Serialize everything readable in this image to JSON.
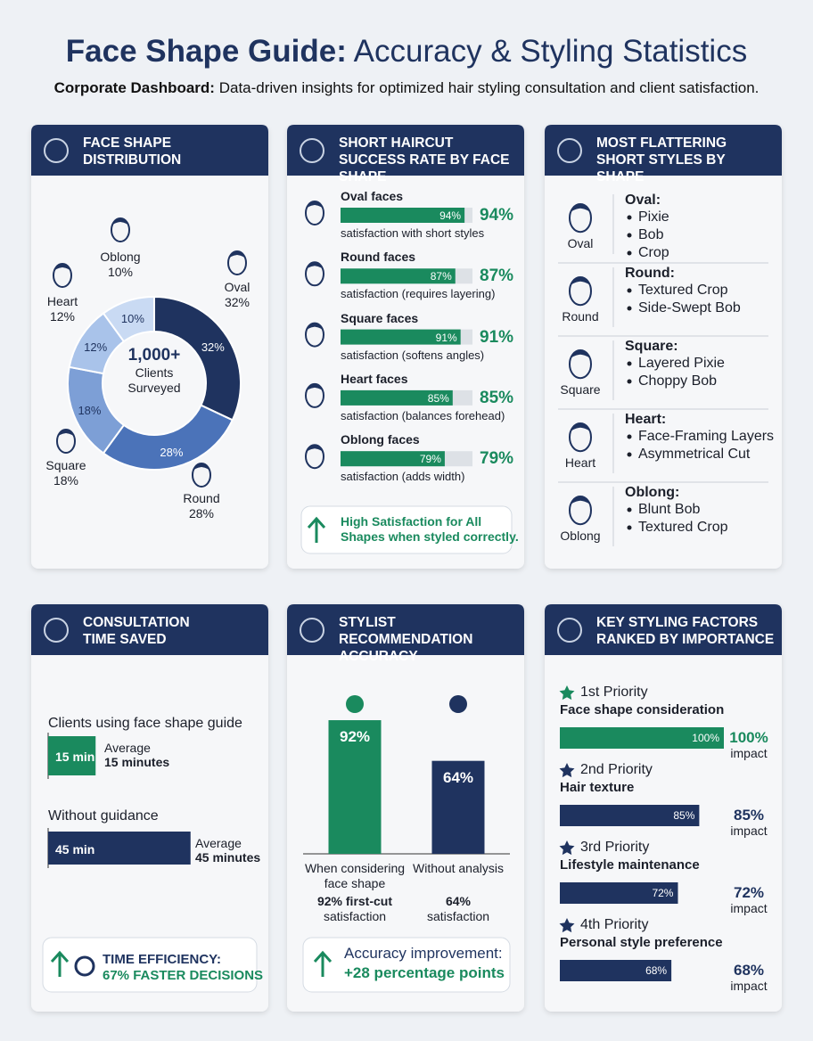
{
  "header": {
    "title_bold": "Face Shape Guide:",
    "title_rest": "Accuracy & Styling Statistics",
    "subtitle_bold": "Corporate Dashboard:",
    "subtitle_rest": "Data-driven insights for optimized hair styling consultation and client satisfaction."
  },
  "chart_data": [
    {
      "type": "donut",
      "title": "FACE SHAPE DISTRIBUTION",
      "center_value": "1,000+",
      "center_label": "Clients Surveyed",
      "categories": [
        "Oval",
        "Round",
        "Square",
        "Heart",
        "Oblong"
      ],
      "values": [
        32,
        28,
        18,
        12,
        10
      ],
      "value_labels": [
        "32%",
        "28%",
        "18%",
        "12%",
        "10%"
      ],
      "colors": [
        "#1f335f",
        "#4b73b9",
        "#7d9fd6",
        "#a9c3ea",
        "#c9daf3"
      ]
    },
    {
      "type": "progress",
      "title": "SHORT HAIRCUT SUCCESS RATE BY FACE SHAPE",
      "categories": [
        "Oval faces",
        "Round faces",
        "Square faces",
        "Heart faces",
        "Oblong faces"
      ],
      "values": [
        94,
        87,
        91,
        85,
        79
      ],
      "value_labels": [
        "94%",
        "87%",
        "91%",
        "85%",
        "79%"
      ],
      "descriptions": [
        "satisfaction with short styles",
        "satisfaction (requires layering)",
        "satisfaction (softens angles)",
        "satisfaction (balances forehead)",
        "satisfaction (adds width)"
      ],
      "color": "#1a8a5e",
      "note": [
        "High Satisfaction for All",
        "Shapes when styled correctly."
      ]
    },
    {
      "type": "hbar",
      "title": "CONSULTATION TIME SAVED",
      "categories": [
        "Clients using face shape guide",
        "Without guidance"
      ],
      "values": [
        15,
        45
      ],
      "value_labels": [
        "15 min",
        "45 min"
      ],
      "annotations": [
        {
          "label": "Average",
          "value": "15 minutes"
        },
        {
          "label": "Average",
          "value": "45 minutes"
        }
      ],
      "colors": [
        "#1a8a5e",
        "#1f335f"
      ],
      "note": [
        "TIME EFFICIENCY:",
        "67% FASTER DECISIONS"
      ]
    },
    {
      "type": "bar",
      "title": "STYLIST RECOMMENDATION ACCURACY",
      "categories": [
        "When considering face shape",
        "Without analysis"
      ],
      "values": [
        92,
        64
      ],
      "value_labels": [
        "92%",
        "64%"
      ],
      "sublabels": [
        {
          "bold": "92% first-cut",
          "rest": "satisfaction"
        },
        {
          "bold": "64%",
          "rest": "satisfaction"
        }
      ],
      "colors": [
        "#1a8a5e",
        "#1f335f"
      ],
      "note": [
        "Accuracy improvement:",
        "+28 percentage points"
      ]
    },
    {
      "type": "ranked",
      "title": "KEY STYLING FACTORS RANKED BY IMPORTANCE",
      "priorities": [
        "1st Priority",
        "2nd Priority",
        "3rd Priority",
        "4th Priority"
      ],
      "categories": [
        "Face shape consideration",
        "Hair texture",
        "Lifestyle maintenance",
        "Personal style preference"
      ],
      "values": [
        100,
        85,
        72,
        68
      ],
      "value_labels": [
        "100%",
        "85%",
        "72%",
        "68%"
      ],
      "value_caption": "impact",
      "colors": [
        "#1a8a5e",
        "#1f335f",
        "#1f335f",
        "#1f335f"
      ]
    }
  ],
  "styles_panel": {
    "title": "MOST FLATTERING SHORT STYLES BY SHAPE",
    "shapes": [
      {
        "label": "Oval",
        "heading": "Oval:",
        "styles": [
          "Pixie",
          "Bob",
          "Crop"
        ]
      },
      {
        "label": "Round",
        "heading": "Round:",
        "styles": [
          "Textured Crop",
          "Side-Swept Bob"
        ]
      },
      {
        "label": "Square",
        "heading": "Square:",
        "styles": [
          "Layered Pixie",
          "Choppy Bob"
        ]
      },
      {
        "label": "Heart",
        "heading": "Heart:",
        "styles": [
          "Face-Framing Layers",
          "Asymmetrical Cut"
        ]
      },
      {
        "label": "Oblong",
        "heading": "Oblong:",
        "styles": [
          "Blunt Bob",
          "Textured Crop"
        ]
      }
    ]
  }
}
